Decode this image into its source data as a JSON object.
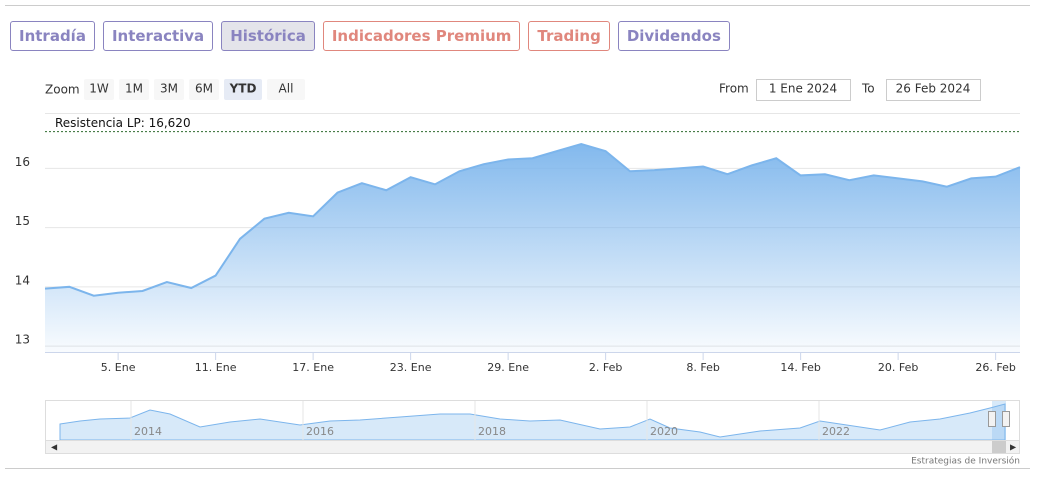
{
  "tabs": {
    "items": [
      "Intradía",
      "Interactiva",
      "Histórica",
      "Indicadores Premium",
      "Trading",
      "Dividendos"
    ],
    "colors": [
      "#8a84c0",
      "#8a84c0",
      "#8a84c0",
      "#e0877d",
      "#e0877d",
      "#8a84c0"
    ],
    "selected_index": 2
  },
  "zoom": {
    "label": "Zoom",
    "buttons": [
      "1W",
      "1M",
      "3M",
      "6M",
      "YTD",
      "All"
    ],
    "selected_index": 4
  },
  "range": {
    "from_label": "From",
    "from": "1 Ene 2024",
    "to_label": "To",
    "to": "26 Feb 2024"
  },
  "chart_data": {
    "type": "area",
    "categories": [
      null,
      null,
      null,
      "5. Ene",
      null,
      null,
      null,
      "11. Ene",
      null,
      null,
      null,
      "17. Ene",
      null,
      null,
      null,
      "23. Ene",
      null,
      null,
      null,
      "29. Ene",
      null,
      null,
      null,
      "2. Feb",
      null,
      null,
      null,
      "8. Feb",
      null,
      null,
      null,
      "14. Feb",
      null,
      null,
      null,
      "20. Feb",
      null,
      null,
      null,
      "26. Feb",
      null
    ],
    "values": [
      13.97,
      14.0,
      13.85,
      13.9,
      13.93,
      14.08,
      13.98,
      14.19,
      14.81,
      15.15,
      15.25,
      15.19,
      15.59,
      15.75,
      15.63,
      15.85,
      15.73,
      15.95,
      16.07,
      16.15,
      16.17,
      16.29,
      16.41,
      16.29,
      15.95,
      15.97,
      16.0,
      16.03,
      15.9,
      16.05,
      16.17,
      15.88,
      15.9,
      15.8,
      15.88,
      15.83,
      15.78,
      15.69,
      15.83,
      15.86,
      16.02
    ],
    "color": "#7cb5ec",
    "ylim": [
      12.9,
      16.9
    ],
    "yticks": [
      13,
      14,
      15,
      16
    ],
    "grid": true,
    "annotations": [
      {
        "label": "Resistencia LP: 16,620",
        "value": 16.62,
        "color": "#2e6b2e"
      }
    ]
  },
  "navigator": {
    "labels": [
      "2014",
      "2016",
      "2018",
      "2020",
      "2022"
    ]
  },
  "credits": "Estrategias de Inversión"
}
